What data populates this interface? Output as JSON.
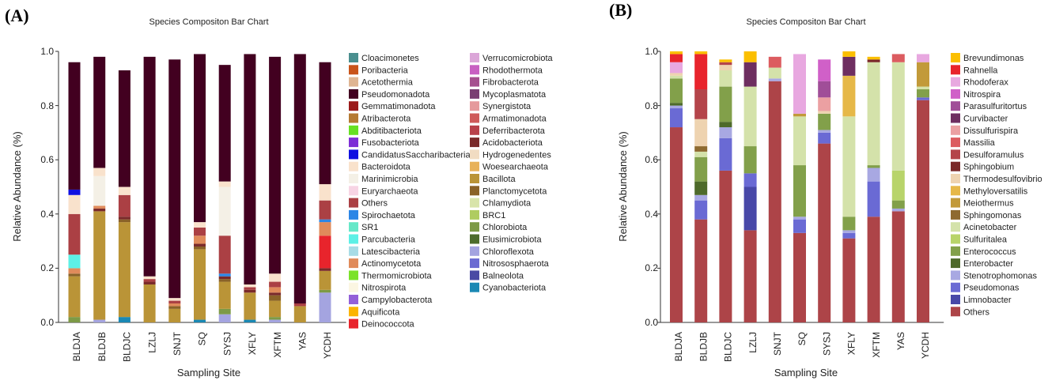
{
  "chart_data": [
    {
      "panel_label": "(A)",
      "type": "bar",
      "stacked": true,
      "title": "Species Compositon Bar Chart",
      "xlabel": "Sampling Site",
      "ylabel": "Relative Abundance (%)",
      "ylim": [
        0,
        1.0
      ],
      "yticks": [
        "0.0",
        "0.2",
        "0.4",
        "0.6",
        "0.8",
        "1.0"
      ],
      "categories": [
        "BLDJA",
        "BLDJB",
        "BLDJC",
        "LZLJ",
        "SNJT",
        "SQ",
        "SYSJ",
        "XFLY",
        "XFTM",
        "YAS",
        "YCDH"
      ],
      "legend": [
        {
          "name": "Cloacimonetes",
          "color": "#4a8f8f"
        },
        {
          "name": "Poribacteria",
          "color": "#c9541a"
        },
        {
          "name": "Acetothermia",
          "color": "#dfb592"
        },
        {
          "name": "Pseudomonadota",
          "color": "#420020"
        },
        {
          "name": "Gemmatimonadota",
          "color": "#9b1a1a"
        },
        {
          "name": "Atribacterota",
          "color": "#b57a32"
        },
        {
          "name": "Abditibacteriota",
          "color": "#66e022"
        },
        {
          "name": "Fusobacteriota",
          "color": "#7d2ed6"
        },
        {
          "name": "CandidatusSaccharibacteria",
          "color": "#1010e0"
        },
        {
          "name": "Bacteroidota",
          "color": "#f9e2cc"
        },
        {
          "name": "Marinimicrobia",
          "color": "#f4f0e6"
        },
        {
          "name": "Euryarchaeota",
          "color": "#f7d4e4"
        },
        {
          "name": "Others",
          "color": "#ab4044"
        },
        {
          "name": "Spirochaetota",
          "color": "#2c86e6"
        },
        {
          "name": "SR1",
          "color": "#66e8c8"
        },
        {
          "name": "Parcubacteria",
          "color": "#5df0e6"
        },
        {
          "name": "Latescibacteria",
          "color": "#a8dce6"
        },
        {
          "name": "Actinomycetota",
          "color": "#e08b5b"
        },
        {
          "name": "Thermomicrobiota",
          "color": "#7be22a"
        },
        {
          "name": "Nitrospirota",
          "color": "#fbf6e2"
        },
        {
          "name": "Campylobacterota",
          "color": "#9360d8"
        },
        {
          "name": "Aquificota",
          "color": "#fbb400"
        },
        {
          "name": "Deinococcota",
          "color": "#e8242c"
        },
        {
          "name": "Verrucomicrobiota",
          "color": "#dba6d8"
        },
        {
          "name": "Rhodothermota",
          "color": "#c860c2"
        },
        {
          "name": "Fibrobacterota",
          "color": "#a5508f"
        },
        {
          "name": "Mycoplasmatota",
          "color": "#7a3e72"
        },
        {
          "name": "Synergistota",
          "color": "#e59a9c"
        },
        {
          "name": "Armatimonadota",
          "color": "#cf5a5a"
        },
        {
          "name": "Deferribacterota",
          "color": "#b8414a"
        },
        {
          "name": "Acidobacteriota",
          "color": "#7a2a2a"
        },
        {
          "name": "Hydrogenedentes",
          "color": "#f1dcc2"
        },
        {
          "name": "Woesearchaeota",
          "color": "#e8b25a"
        },
        {
          "name": "Bacillota",
          "color": "#ba9437"
        },
        {
          "name": "Planctomycetota",
          "color": "#8a6228"
        },
        {
          "name": "Chlamydiota",
          "color": "#d8e4aa"
        },
        {
          "name": "BRC1",
          "color": "#afcc60"
        },
        {
          "name": "Chlorobiota",
          "color": "#7d9a46"
        },
        {
          "name": "Elusimicrobiota",
          "color": "#4d6c2c"
        },
        {
          "name": "Chloroflexota",
          "color": "#a4a4e0"
        },
        {
          "name": "Nitrososphaerota",
          "color": "#6b6bd2"
        },
        {
          "name": "Balneolota",
          "color": "#4a4aa4"
        },
        {
          "name": "Cyanobacteriota",
          "color": "#1a88b4"
        }
      ],
      "series": [
        {
          "name": "Chloroflexota",
          "values": [
            0.0,
            0.01,
            0.0,
            0.0,
            0.0,
            0.0,
            0.03,
            0.0,
            0.01,
            0.0,
            0.11
          ]
        },
        {
          "name": "Cyanobacteriota",
          "values": [
            0.0,
            0.0,
            0.02,
            0.0,
            0.0,
            0.01,
            0.0,
            0.01,
            0.0,
            0.0,
            0.0
          ]
        },
        {
          "name": "Chlorobiota",
          "values": [
            0.02,
            0.0,
            0.0,
            0.0,
            0.0,
            0.0,
            0.02,
            0.0,
            0.01,
            0.0,
            0.01
          ]
        },
        {
          "name": "Bacillota",
          "values": [
            0.15,
            0.4,
            0.35,
            0.14,
            0.05,
            0.26,
            0.1,
            0.1,
            0.06,
            0.06,
            0.07
          ]
        },
        {
          "name": "Planctomycetota",
          "values": [
            0.01,
            0.0,
            0.01,
            0.0,
            0.01,
            0.01,
            0.01,
            0.0,
            0.02,
            0.0,
            0.0
          ]
        },
        {
          "name": "Acidobacteriota",
          "values": [
            0.0,
            0.01,
            0.01,
            0.01,
            0.0,
            0.01,
            0.01,
            0.01,
            0.01,
            0.0,
            0.01
          ]
        },
        {
          "name": "Deinococcota",
          "values": [
            0.0,
            0.0,
            0.0,
            0.0,
            0.0,
            0.0,
            0.0,
            0.0,
            0.0,
            0.0,
            0.12
          ]
        },
        {
          "name": "Actinomycetota",
          "values": [
            0.02,
            0.01,
            0.0,
            0.0,
            0.01,
            0.03,
            0.0,
            0.0,
            0.02,
            0.0,
            0.05
          ]
        },
        {
          "name": "Parcubacteria",
          "values": [
            0.05,
            0.0,
            0.0,
            0.0,
            0.0,
            0.0,
            0.0,
            0.0,
            0.0,
            0.0,
            0.0
          ]
        },
        {
          "name": "Spirochaetota",
          "values": [
            0.0,
            0.0,
            0.0,
            0.0,
            0.0,
            0.0,
            0.01,
            0.0,
            0.0,
            0.0,
            0.01
          ]
        },
        {
          "name": "Others",
          "values": [
            0.15,
            0.0,
            0.08,
            0.01,
            0.01,
            0.03,
            0.14,
            0.01,
            0.02,
            0.01,
            0.07
          ]
        },
        {
          "name": "Marinimicrobia",
          "values": [
            0.0,
            0.11,
            0.0,
            0.0,
            0.0,
            0.0,
            0.18,
            0.0,
            0.0,
            0.0,
            0.0
          ]
        },
        {
          "name": "Bacteroidota",
          "values": [
            0.07,
            0.03,
            0.03,
            0.01,
            0.01,
            0.02,
            0.02,
            0.01,
            0.03,
            0.0,
            0.06
          ]
        },
        {
          "name": "CandidatusSaccharibacteria",
          "values": [
            0.02,
            0.0,
            0.0,
            0.0,
            0.0,
            0.0,
            0.0,
            0.0,
            0.0,
            0.0,
            0.0
          ]
        },
        {
          "name": "Pseudomonadota",
          "values": [
            0.47,
            0.41,
            0.43,
            0.81,
            0.88,
            0.62,
            0.43,
            0.85,
            0.8,
            0.92,
            0.45
          ]
        }
      ]
    },
    {
      "panel_label": "(B)",
      "type": "bar",
      "stacked": true,
      "title": "Species Compositon Bar Chart",
      "xlabel": "Sampling Site",
      "ylabel": "Relative Abundance (%)",
      "ylim": [
        0,
        1.0
      ],
      "yticks": [
        "0.0",
        "0.2",
        "0.4",
        "0.6",
        "0.8",
        "1.0"
      ],
      "categories": [
        "BLDJA",
        "BLDJB",
        "BLDJC",
        "LZLJ",
        "SNJT",
        "SQ",
        "SYSJ",
        "XFLY",
        "XFTM",
        "YAS",
        "YCDH"
      ],
      "legend": [
        {
          "name": "Brevundimonas",
          "color": "#fbbf00"
        },
        {
          "name": "Rahnella",
          "color": "#e8242c"
        },
        {
          "name": "Rhodoferax",
          "color": "#e8a8e0"
        },
        {
          "name": "Nitrospira",
          "color": "#d060c8"
        },
        {
          "name": "Parasulfuritortus",
          "color": "#a04e98"
        },
        {
          "name": "Curvibacter",
          "color": "#6e2e60"
        },
        {
          "name": "Dissulfurispira",
          "color": "#eba0a2"
        },
        {
          "name": "Massilia",
          "color": "#dc5c60"
        },
        {
          "name": "Desulforamulus",
          "color": "#b4444a"
        },
        {
          "name": "Sphingobium",
          "color": "#7a2828"
        },
        {
          "name": "Thermodesulfovibrio",
          "color": "#eed3b0"
        },
        {
          "name": "Methyloversatilis",
          "color": "#e6b848"
        },
        {
          "name": "Meiothermus",
          "color": "#c29a3a"
        },
        {
          "name": "Sphingomonas",
          "color": "#8e6a30"
        },
        {
          "name": "Acinetobacter",
          "color": "#d4e2aa"
        },
        {
          "name": "Sulfuritalea",
          "color": "#b8d46a"
        },
        {
          "name": "Enterococcus",
          "color": "#82a04a"
        },
        {
          "name": "Enterobacter",
          "color": "#4e6a2a"
        },
        {
          "name": "Stenotrophomonas",
          "color": "#a8a8e2"
        },
        {
          "name": "Pseudomonas",
          "color": "#6a6ad4"
        },
        {
          "name": "Limnobacter",
          "color": "#4848a8"
        },
        {
          "name": "Others",
          "color": "#ad4448"
        }
      ],
      "series": [
        {
          "name": "Others",
          "values": [
            0.72,
            0.38,
            0.56,
            0.34,
            0.89,
            0.33,
            0.66,
            0.31,
            0.39,
            0.41,
            0.82
          ]
        },
        {
          "name": "Limnobacter",
          "values": [
            0.0,
            0.0,
            0.0,
            0.16,
            0.0,
            0.0,
            0.0,
            0.0,
            0.0,
            0.0,
            0.0
          ]
        },
        {
          "name": "Pseudomonas",
          "values": [
            0.07,
            0.07,
            0.12,
            0.05,
            0.0,
            0.05,
            0.04,
            0.02,
            0.13,
            0.0,
            0.01
          ]
        },
        {
          "name": "Stenotrophomonas",
          "values": [
            0.01,
            0.02,
            0.04,
            0.0,
            0.01,
            0.01,
            0.01,
            0.01,
            0.05,
            0.01,
            0.0
          ]
        },
        {
          "name": "Enterobacter",
          "values": [
            0.01,
            0.05,
            0.02,
            0.0,
            0.0,
            0.0,
            0.0,
            0.0,
            0.0,
            0.0,
            0.0
          ]
        },
        {
          "name": "Enterococcus",
          "values": [
            0.09,
            0.09,
            0.13,
            0.1,
            0.0,
            0.19,
            0.06,
            0.05,
            0.01,
            0.03,
            0.03
          ]
        },
        {
          "name": "Sulfuritalea",
          "values": [
            0.0,
            0.0,
            0.0,
            0.0,
            0.0,
            0.0,
            0.0,
            0.0,
            0.0,
            0.11,
            0.0
          ]
        },
        {
          "name": "Acinetobacter",
          "values": [
            0.01,
            0.02,
            0.06,
            0.22,
            0.04,
            0.18,
            0.0,
            0.37,
            0.38,
            0.4,
            0.01
          ]
        },
        {
          "name": "Sphingomonas",
          "values": [
            0.0,
            0.02,
            0.0,
            0.0,
            0.0,
            0.0,
            0.0,
            0.0,
            0.0,
            0.0,
            0.0
          ]
        },
        {
          "name": "Meiothermus",
          "values": [
            0.0,
            0.0,
            0.0,
            0.0,
            0.0,
            0.01,
            0.0,
            0.0,
            0.0,
            0.0,
            0.09
          ]
        },
        {
          "name": "Methyloversatilis",
          "values": [
            0.0,
            0.0,
            0.0,
            0.0,
            0.0,
            0.0,
            0.0,
            0.15,
            0.0,
            0.0,
            0.0
          ]
        },
        {
          "name": "Thermodesulfovibrio",
          "values": [
            0.01,
            0.1,
            0.02,
            0.0,
            0.0,
            0.0,
            0.01,
            0.0,
            0.0,
            0.0,
            0.0
          ]
        },
        {
          "name": "Sphingobium",
          "values": [
            0.0,
            0.0,
            0.0,
            0.0,
            0.0,
            0.0,
            0.0,
            0.0,
            0.01,
            0.0,
            0.0
          ]
        },
        {
          "name": "Desulforamulus",
          "values": [
            0.0,
            0.11,
            0.01,
            0.0,
            0.0,
            0.0,
            0.0,
            0.0,
            0.0,
            0.0,
            0.0
          ]
        },
        {
          "name": "Massilia",
          "values": [
            0.0,
            0.0,
            0.0,
            0.0,
            0.04,
            0.0,
            0.0,
            0.0,
            0.0,
            0.03,
            0.0
          ]
        },
        {
          "name": "Dissulfurispira",
          "values": [
            0.0,
            0.0,
            0.0,
            0.0,
            0.0,
            0.0,
            0.05,
            0.0,
            0.0,
            0.0,
            0.0
          ]
        },
        {
          "name": "Curvibacter",
          "values": [
            0.0,
            0.0,
            0.0,
            0.09,
            0.0,
            0.0,
            0.0,
            0.07,
            0.0,
            0.0,
            0.0
          ]
        },
        {
          "name": "Parasulfuritortus",
          "values": [
            0.0,
            0.0,
            0.0,
            0.0,
            0.0,
            0.0,
            0.06,
            0.0,
            0.0,
            0.0,
            0.0
          ]
        },
        {
          "name": "Nitrospira",
          "values": [
            0.0,
            0.0,
            0.0,
            0.0,
            0.0,
            0.0,
            0.08,
            0.0,
            0.0,
            0.0,
            0.0
          ]
        },
        {
          "name": "Rhodoferax",
          "values": [
            0.04,
            0.0,
            0.0,
            0.0,
            0.0,
            0.22,
            0.0,
            0.0,
            0.0,
            0.0,
            0.03
          ]
        },
        {
          "name": "Rahnella",
          "values": [
            0.03,
            0.13,
            0.0,
            0.0,
            0.0,
            0.0,
            0.0,
            0.0,
            0.0,
            0.0,
            0.0
          ]
        },
        {
          "name": "Brevundimonas",
          "values": [
            0.01,
            0.01,
            0.01,
            0.04,
            0.0,
            0.0,
            0.0,
            0.02,
            0.01,
            0.0,
            0.0
          ]
        }
      ]
    }
  ]
}
